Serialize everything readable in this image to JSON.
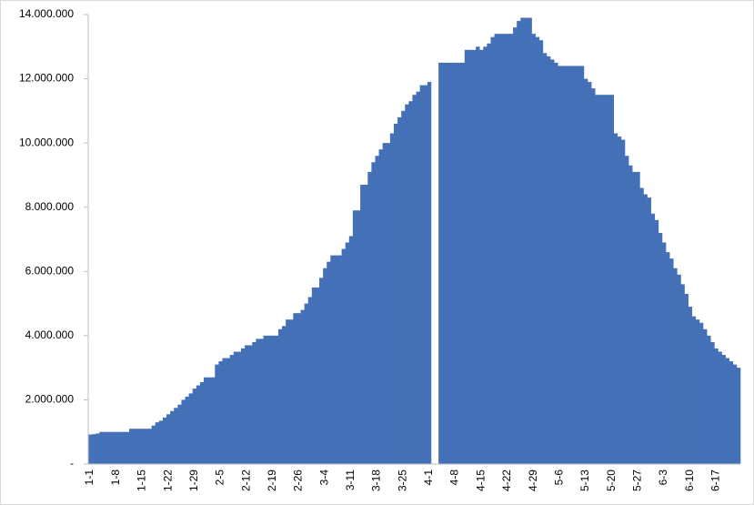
{
  "chart_data": {
    "type": "bar",
    "categories": [
      "1-1",
      null,
      null,
      null,
      null,
      null,
      null,
      "1-8",
      null,
      null,
      null,
      null,
      null,
      null,
      "1-15",
      null,
      null,
      null,
      null,
      null,
      null,
      "1-22",
      null,
      null,
      null,
      null,
      null,
      null,
      "1-29",
      null,
      null,
      null,
      null,
      null,
      null,
      "2-5",
      null,
      null,
      null,
      null,
      null,
      null,
      "2-12",
      null,
      null,
      null,
      null,
      null,
      null,
      "2-19",
      null,
      null,
      null,
      null,
      null,
      null,
      "2-26",
      null,
      null,
      null,
      null,
      null,
      null,
      "3-4",
      null,
      null,
      null,
      null,
      null,
      null,
      "3-11",
      null,
      null,
      null,
      null,
      null,
      null,
      "3-18",
      null,
      null,
      null,
      null,
      null,
      null,
      "3-25",
      null,
      null,
      null,
      null,
      null,
      null,
      "4-1",
      null,
      null,
      null,
      null,
      null,
      null,
      "4-8",
      null,
      null,
      null,
      null,
      null,
      null,
      "4-15",
      null,
      null,
      null,
      null,
      null,
      null,
      "4-22",
      null,
      null,
      null,
      null,
      null,
      null,
      "4-29",
      null,
      null,
      null,
      null,
      null,
      null,
      "5-6",
      null,
      null,
      null,
      null,
      null,
      null,
      "5-13",
      null,
      null,
      null,
      null,
      null,
      null,
      "5-20",
      null,
      null,
      null,
      null,
      null,
      null,
      "5-27",
      null,
      null,
      null,
      null,
      null,
      null,
      "6-3",
      null,
      null,
      null,
      null,
      null,
      null,
      "6-10",
      null,
      null,
      null,
      null,
      null,
      null,
      "6-17",
      null,
      null,
      null,
      null,
      null,
      null
    ],
    "values": [
      920000,
      930000,
      950000,
      1000000,
      1000000,
      1000000,
      1000000,
      1000000,
      1000000,
      1000000,
      1000000,
      1100000,
      1100000,
      1100000,
      1100000,
      1100000,
      1100000,
      1200000,
      1300000,
      1350000,
      1450000,
      1550000,
      1650000,
      1750000,
      1850000,
      2000000,
      2100000,
      2200000,
      2350000,
      2450000,
      2550000,
      2700000,
      2700000,
      2700000,
      3100000,
      3200000,
      3300000,
      3300000,
      3400000,
      3500000,
      3500000,
      3600000,
      3700000,
      3700000,
      3800000,
      3900000,
      3900000,
      4000000,
      4000000,
      4000000,
      4000000,
      4200000,
      4300000,
      4500000,
      4500000,
      4700000,
      4700000,
      4800000,
      5000000,
      5200000,
      5500000,
      5500000,
      5800000,
      6100000,
      6300000,
      6500000,
      6500000,
      6500000,
      6700000,
      6900000,
      7100000,
      7900000,
      7900000,
      8700000,
      8700000,
      9100000,
      9400000,
      9600000,
      9800000,
      10000000,
      10000000,
      10300000,
      10600000,
      10800000,
      11000000,
      11200000,
      11300000,
      11500000,
      11600000,
      11800000,
      11800000,
      11900000,
      null,
      null,
      12500000,
      12500000,
      12500000,
      12500000,
      12500000,
      12500000,
      12500000,
      12900000,
      12900000,
      12900000,
      13000000,
      12900000,
      13000000,
      13100000,
      13300000,
      13400000,
      13400000,
      13400000,
      13400000,
      13400000,
      13600000,
      13800000,
      13900000,
      13900000,
      13900000,
      13400000,
      13300000,
      13200000,
      12800000,
      12700000,
      12600000,
      12500000,
      12400000,
      12400000,
      12400000,
      12400000,
      12400000,
      12400000,
      12400000,
      12000000,
      11900000,
      11700000,
      11500000,
      11500000,
      11500000,
      11500000,
      11500000,
      10300000,
      10200000,
      10100000,
      9600000,
      9300000,
      9100000,
      9100000,
      8600000,
      8400000,
      8300000,
      7800000,
      7600000,
      7200000,
      6900000,
      6600000,
      6400000,
      6100000,
      5900000,
      5600000,
      5300000,
      4900000,
      4600000,
      4500000,
      4400000,
      4200000,
      4000000,
      3800000,
      3600000,
      3500000,
      3400000,
      3300000,
      3200000,
      3100000,
      3000000
    ],
    "color": "#4470b8",
    "ylim": [
      0,
      14000000
    ],
    "yticks": [
      {
        "value": 0,
        "label": "-"
      },
      {
        "value": 2000000,
        "label": "2.000.000"
      },
      {
        "value": 4000000,
        "label": "4.000.000"
      },
      {
        "value": 6000000,
        "label": "6.000.000"
      },
      {
        "value": 8000000,
        "label": "8.000.000"
      },
      {
        "value": 10000000,
        "label": "10.000.000"
      },
      {
        "value": 12000000,
        "label": "12.000.000"
      },
      {
        "value": 14000000,
        "label": "14.000.000"
      }
    ]
  }
}
